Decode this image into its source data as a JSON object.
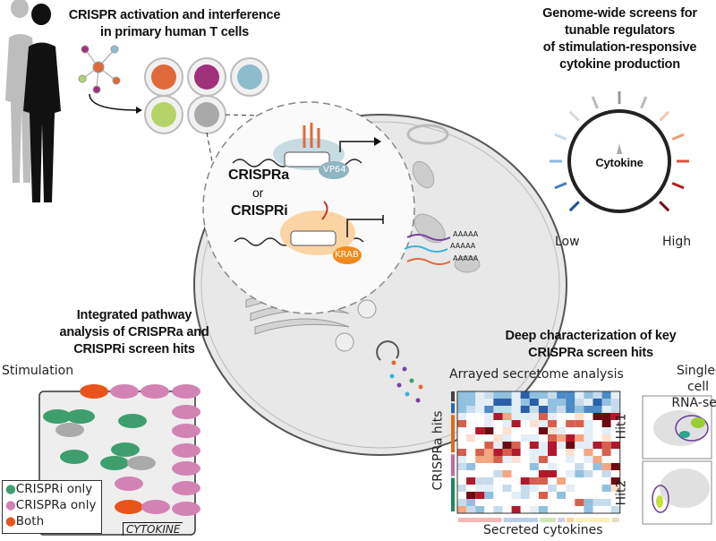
{
  "top_left": {
    "title_line1": "CRISPR activation and interference",
    "title_line2": "in primary human T cells"
  },
  "top_right": {
    "title_lines": [
      "Genome-wide screens for",
      "tunable regulators",
      "of stimulation-responsive",
      "cytokine production"
    ],
    "dial_label": "Cytokine",
    "low_label": "Low",
    "high_label": "High"
  },
  "cell": {
    "crispra_label": "CRISPRa",
    "or_label": "or",
    "crispri_label": "CRISPRi",
    "vp64_label": "VP64",
    "krab_label": "KRAB",
    "polya": "AAAAA"
  },
  "bottom_left": {
    "title_lines": [
      "Integrated pathway",
      "analysis of CRISPRa and",
      "CRISPRi screen hits"
    ],
    "stimulation_label": "Stimulation",
    "cytokine_label": "CYTOKINE",
    "legend": [
      {
        "label": "CRISPRi only",
        "color": "#3f9e6e"
      },
      {
        "label": "CRISPRa only",
        "color": "#d283b3"
      },
      {
        "label": "Both",
        "color": "#e8541b"
      }
    ]
  },
  "bottom_right": {
    "title_lines": [
      "Deep characterization of key",
      "CRISPRa screen hits"
    ],
    "heatmap_title": "Arrayed secretome analysis",
    "y_label": "CRISPRa hits",
    "x_label": "Secreted cytokines",
    "scrna_title_lines": [
      "Single-cell",
      "RNA-seq"
    ],
    "hit1_label": "Hit1",
    "hit2_label": "Hit2"
  },
  "colors": {
    "orange": "#e0693a",
    "purple": "#a0307a",
    "blue": "#8dbccc",
    "green": "#b6d36a",
    "gray": "#a9a9a9",
    "heat_low": "#2b5fa8",
    "heat_high": "#6b0a14"
  }
}
